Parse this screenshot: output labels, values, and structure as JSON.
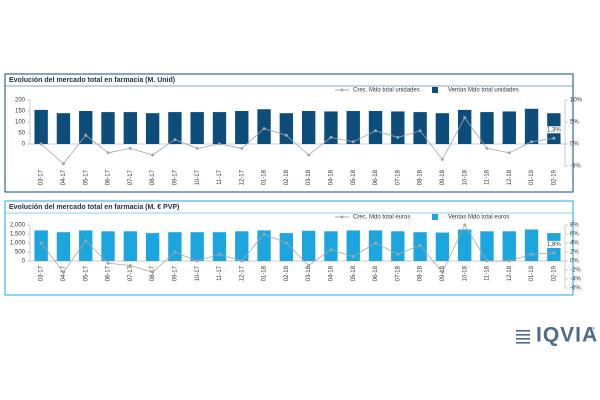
{
  "chart_data": [
    {
      "type": "combo",
      "title": "Evolución del mercado total en farmacia (M. Unid)",
      "categories": [
        "03-17",
        "04-17",
        "05-17",
        "06-17",
        "07-17",
        "08-17",
        "09-17",
        "10-17",
        "11-17",
        "12-17",
        "01-18",
        "02-18",
        "03-18",
        "04-18",
        "05-18",
        "06-18",
        "07-18",
        "08-18",
        "09-18",
        "10-18",
        "11-18",
        "12-18",
        "01-19",
        "02-19"
      ],
      "series": [
        {
          "name": "Crec. Mdo total unidades",
          "type": "line",
          "axis": "y2",
          "color": "#a6a6a6",
          "values": [
            0,
            -4.5,
            2,
            -2,
            -1,
            -2.5,
            1,
            -1,
            0,
            -1,
            3.5,
            2,
            -2.5,
            1.5,
            0.5,
            3,
            1.5,
            3,
            -3.5,
            6,
            -1,
            -2,
            0.5,
            1.3
          ],
          "value_labels": [
            null,
            null,
            null,
            null,
            null,
            null,
            null,
            null,
            null,
            null,
            null,
            null,
            null,
            null,
            null,
            null,
            null,
            null,
            null,
            null,
            null,
            null,
            null,
            "1,3%"
          ]
        },
        {
          "name": "Ventas Mdo total unidades",
          "type": "bar",
          "color": "#0d4d7c",
          "values": [
            155,
            140,
            150,
            145,
            145,
            140,
            145,
            145,
            145,
            150,
            158,
            140,
            150,
            148,
            150,
            150,
            148,
            145,
            140,
            155,
            145,
            148,
            160,
            140
          ]
        }
      ],
      "ylim": [
        -100,
        200
      ],
      "yticks": [
        0,
        50,
        100,
        150,
        200
      ],
      "y2lim": [
        -5,
        10
      ],
      "y2ticks": [
        {
          "value": -5,
          "label": "-5%"
        },
        {
          "value": 0,
          "label": "0%"
        },
        {
          "value": 5,
          "label": "5%"
        },
        {
          "value": 10,
          "label": "10%"
        }
      ],
      "border_color": "#0d4d7c"
    },
    {
      "type": "combo",
      "title": "Evolución del mercado total en farmacia (M. € PVP)",
      "categories": [
        "03-17",
        "04-17",
        "05-17",
        "06-17",
        "07-17",
        "08-17",
        "09-17",
        "10-17",
        "11-17",
        "12-17",
        "01-18",
        "02-18",
        "03-18",
        "04-18",
        "05-18",
        "06-18",
        "07-18",
        "08-18",
        "09-18",
        "10-18",
        "11-18",
        "12-18",
        "01-19",
        "02-19"
      ],
      "series": [
        {
          "name": "Crec. Mdo total euros",
          "type": "line",
          "axis": "y2",
          "color": "#a6a6a6",
          "values": [
            4,
            -2.5,
            4.5,
            -0.5,
            -1,
            -2.5,
            2,
            0,
            1.5,
            0,
            6,
            4,
            -1,
            2.5,
            1,
            4,
            1.5,
            3.5,
            -2.5,
            8,
            0,
            0,
            1.5,
            1.8
          ],
          "value_labels": [
            null,
            null,
            null,
            null,
            null,
            null,
            null,
            null,
            null,
            null,
            null,
            null,
            null,
            null,
            null,
            null,
            null,
            null,
            null,
            null,
            null,
            null,
            null,
            "1,8%"
          ]
        },
        {
          "name": "Ventas Mdo total euros",
          "type": "bar",
          "color": "#1ba6df",
          "values": [
            1700,
            1600,
            1700,
            1650,
            1650,
            1550,
            1600,
            1600,
            1600,
            1650,
            1700,
            1550,
            1680,
            1650,
            1700,
            1700,
            1650,
            1600,
            1580,
            1750,
            1650,
            1650,
            1750,
            1550
          ]
        }
      ],
      "ylim": [
        -1500,
        2000
      ],
      "yticks": [
        0,
        500,
        {
          "value": 1000,
          "label": "1,000"
        },
        {
          "value": 1500,
          "label": "1,500"
        },
        {
          "value": 2000,
          "label": "2,000"
        }
      ],
      "y2lim": [
        -6,
        8
      ],
      "y2ticks": [
        {
          "value": -6,
          "label": "-6%"
        },
        {
          "value": -4,
          "label": "-4%"
        },
        {
          "value": -2,
          "label": "-2%"
        },
        {
          "value": 0,
          "label": "0%"
        },
        {
          "value": 2,
          "label": "2%"
        },
        {
          "value": 4,
          "label": "4%"
        },
        {
          "value": 6,
          "label": "6%"
        },
        {
          "value": 8,
          "label": "8%"
        }
      ],
      "border_color": "#1ba6df"
    }
  ],
  "logo": {
    "text": "IQVIA",
    "mark": "™"
  }
}
